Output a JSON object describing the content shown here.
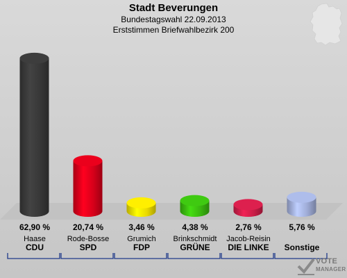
{
  "chart_data": {
    "type": "bar",
    "title": "Stadt Beverungen",
    "subtitle_lines": [
      "Bundestagswahl 22.09.2013",
      "Erststimmen Briefwahlbezirk 200"
    ],
    "ylim": [
      0,
      68
    ],
    "categories": [
      {
        "candidate": "Haase",
        "party": "CDU",
        "label": "62,90 %",
        "value": 62.9,
        "color": "#3a3a3a"
      },
      {
        "candidate": "Rode-Bosse",
        "party": "SPD",
        "label": "20,74 %",
        "value": 20.74,
        "color": "#e0001b"
      },
      {
        "candidate": "Grumich",
        "party": "FDP",
        "label": "3,46 %",
        "value": 3.46,
        "color": "#f5e400"
      },
      {
        "candidate": "Brinkschmidt",
        "party": "GRÜNE",
        "label": "4,38 %",
        "value": 4.38,
        "color": "#3cc010"
      },
      {
        "candidate": "Jacob-Reisin",
        "party": "DIE LINKE",
        "label": "2,76 %",
        "value": 2.76,
        "color": "#d21e4a"
      },
      {
        "candidate": "",
        "party": "Sonstige",
        "label": "5,76 %",
        "value": 5.76,
        "color": "#a6b4e0"
      }
    ]
  },
  "logo": {
    "line1": "VOTE",
    "line2": "MANAGER"
  }
}
